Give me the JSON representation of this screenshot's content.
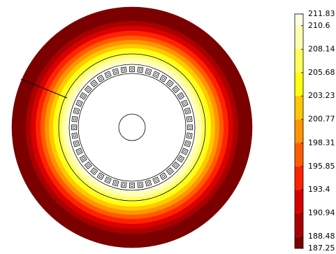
{
  "chart_data": {
    "type": "contour",
    "clim": [
      187.25,
      211.83
    ],
    "cticks": [
      211.83,
      210.6,
      208.14,
      205.68,
      203.23,
      200.77,
      198.31,
      195.85,
      193.4,
      190.94,
      188.48,
      187.25
    ],
    "colors": [
      "#ffffe6",
      "#ffffb0",
      "#ffff5a",
      "#ffff10",
      "#ffc800",
      "#ff9400",
      "#ff5c00",
      "#ff2200",
      "#d80000",
      "#aa0000",
      "#7c0000"
    ]
  }
}
